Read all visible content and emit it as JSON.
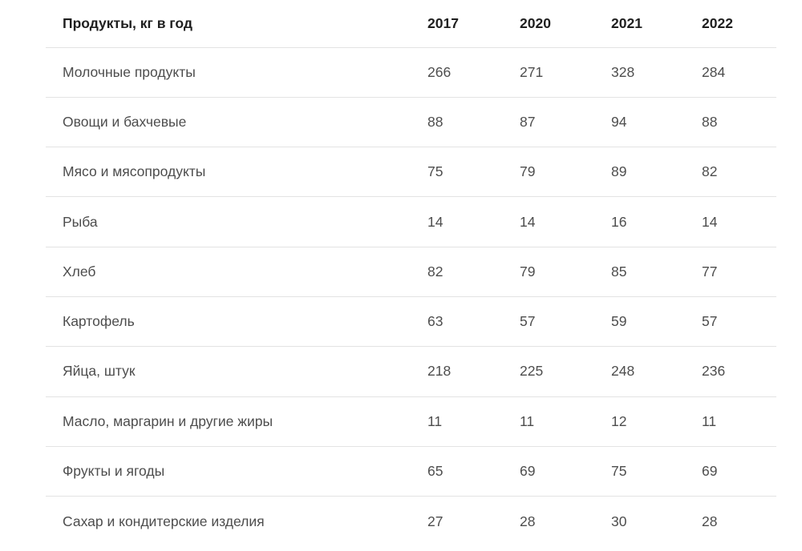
{
  "table": {
    "header": {
      "product_label": "Продукты, кг в год",
      "years": [
        "2017",
        "2020",
        "2021",
        "2022"
      ]
    },
    "rows": [
      {
        "product": "Молочные продукты",
        "values": [
          "266",
          "271",
          "328",
          "284"
        ]
      },
      {
        "product": "Овощи и бахчевые",
        "values": [
          "88",
          "87",
          "94",
          "88"
        ]
      },
      {
        "product": "Мясо и мясопродукты",
        "values": [
          "75",
          "79",
          "89",
          "82"
        ]
      },
      {
        "product": "Рыба",
        "values": [
          "14",
          "14",
          "16",
          "14"
        ]
      },
      {
        "product": "Хлеб",
        "values": [
          "82",
          "79",
          "85",
          "77"
        ]
      },
      {
        "product": "Картофель",
        "values": [
          "63",
          "57",
          "59",
          "57"
        ]
      },
      {
        "product": "Яйца, штук",
        "values": [
          "218",
          "225",
          "248",
          "236"
        ]
      },
      {
        "product": "Масло, маргарин и другие жиры",
        "values": [
          "11",
          "11",
          "12",
          "11"
        ]
      },
      {
        "product": "Фрукты и ягоды",
        "values": [
          "65",
          "69",
          "75",
          "69"
        ]
      },
      {
        "product": "Сахар и кондитерские изделия",
        "values": [
          "27",
          "28",
          "30",
          "28"
        ]
      }
    ]
  },
  "colors": {
    "background": "#ffffff",
    "header_text": "#1f1f1f",
    "body_text": "#4d4d4d",
    "divider": "#e3e3e3"
  },
  "chart_data": {
    "type": "table",
    "title": "Продукты, кг в год",
    "categories": [
      "Молочные продукты",
      "Овощи и бахчевые",
      "Мясо и мясопродукты",
      "Рыба",
      "Хлеб",
      "Картофель",
      "Яйца, штук",
      "Масло, маргарин и другие жиры",
      "Фрукты и ягоды",
      "Сахар и кондитерские изделия"
    ],
    "series": [
      {
        "name": "2017",
        "values": [
          266,
          88,
          75,
          14,
          82,
          63,
          218,
          11,
          65,
          27
        ]
      },
      {
        "name": "2020",
        "values": [
          271,
          87,
          79,
          14,
          79,
          57,
          225,
          11,
          69,
          28
        ]
      },
      {
        "name": "2021",
        "values": [
          328,
          94,
          89,
          16,
          85,
          59,
          248,
          12,
          75,
          30
        ]
      },
      {
        "name": "2022",
        "values": [
          284,
          88,
          82,
          14,
          77,
          57,
          236,
          11,
          69,
          28
        ]
      }
    ],
    "layout": {
      "grid": "horizontal-dividers-only",
      "legend": "none",
      "alignment": "left"
    }
  }
}
